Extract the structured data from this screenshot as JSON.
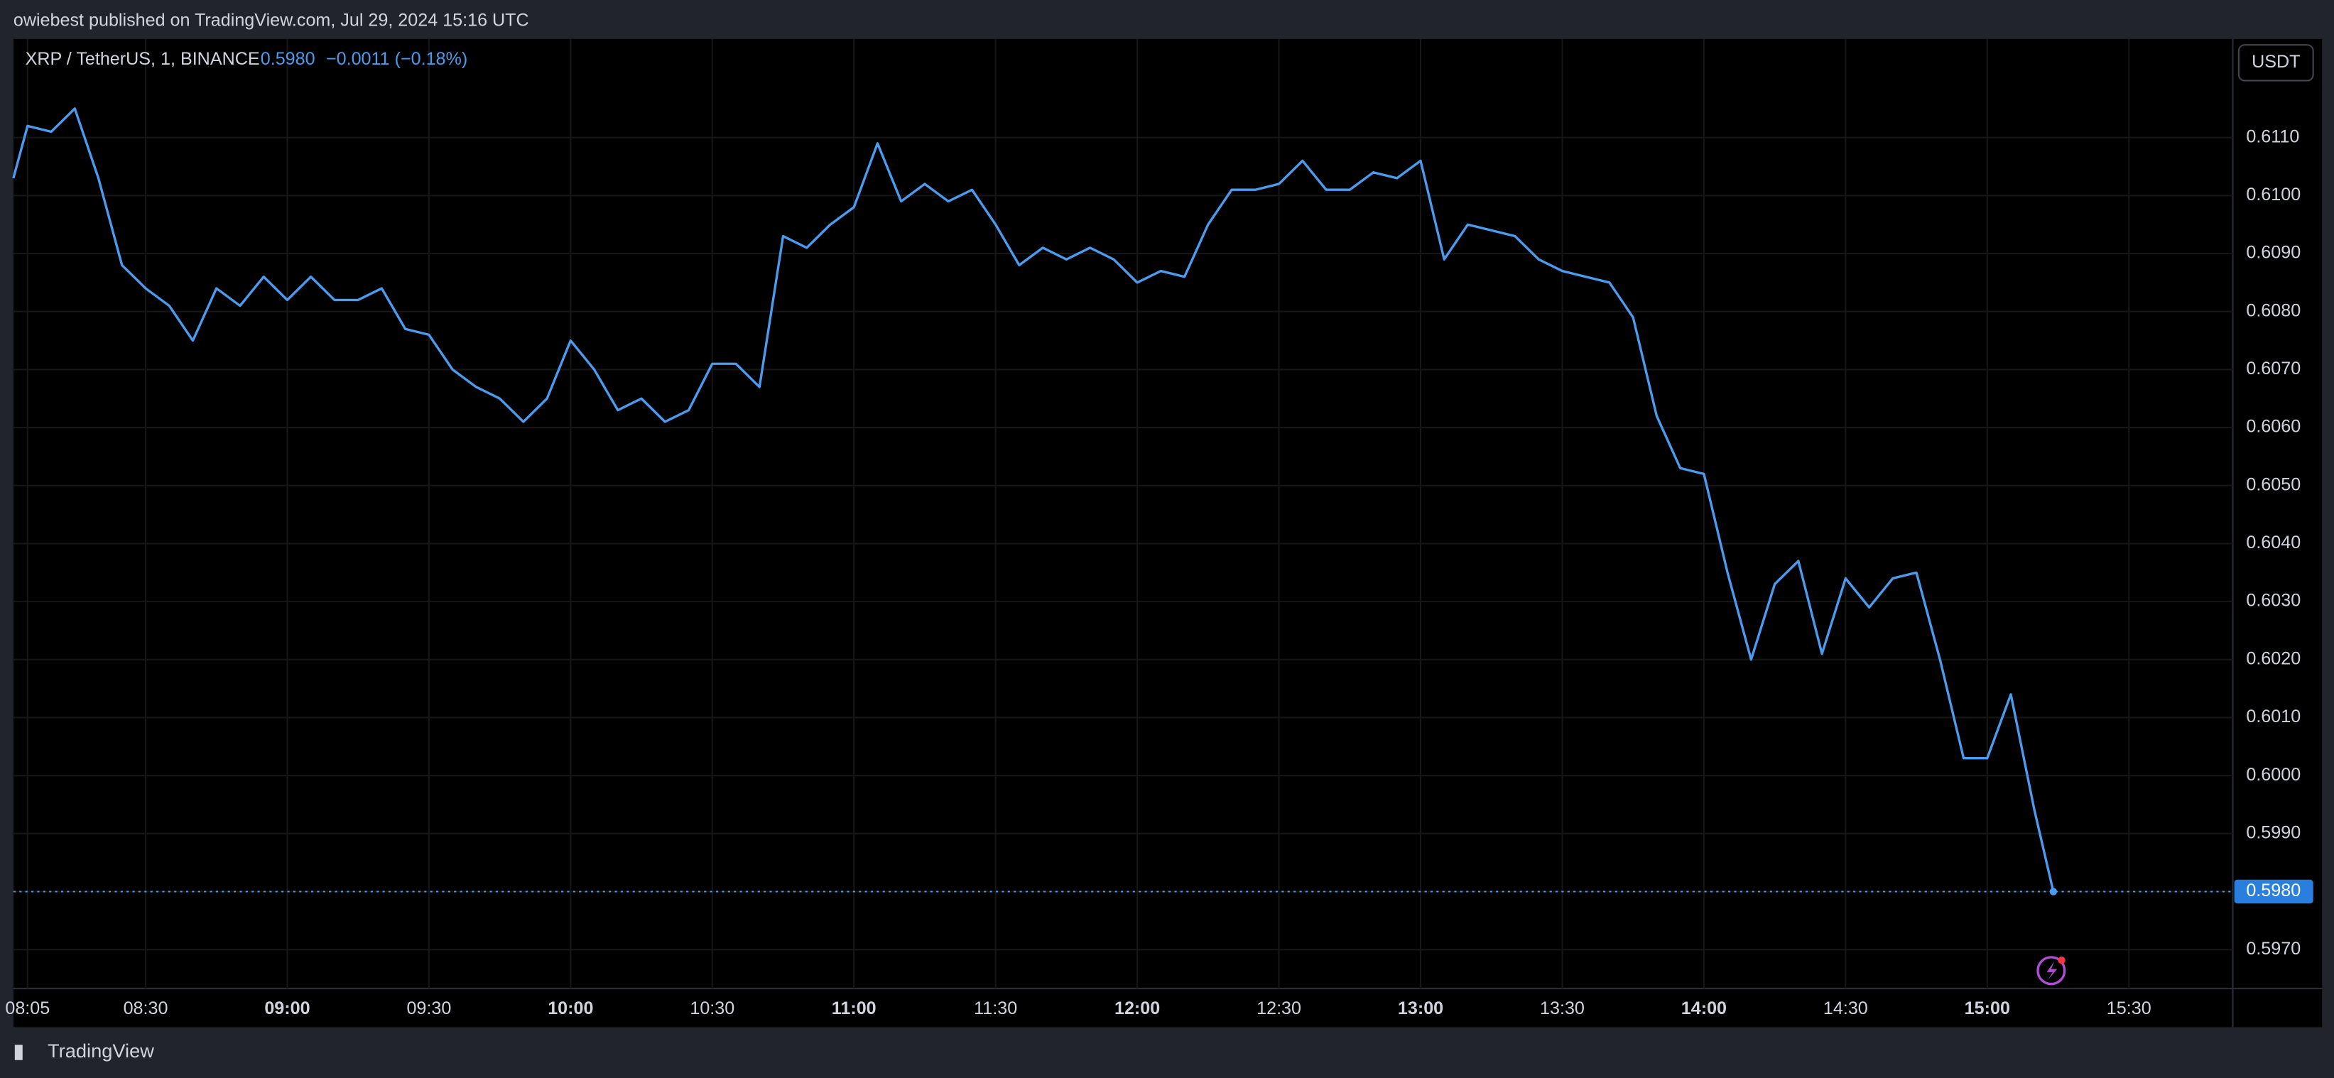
{
  "header": "owiebest published on TradingView.com, Jul 29, 2024 15:16 UTC",
  "footer": "TradingView",
  "currency_button": "USDT",
  "legend": {
    "symbol": "XRP / TetherUS, 1, BINANCE",
    "last": "0.5980",
    "change": "−0.0011 (−0.18%)"
  },
  "chart_data": {
    "type": "line",
    "x": [
      "08:02",
      "08:05",
      "08:10",
      "08:15",
      "08:20",
      "08:25",
      "08:30",
      "08:35",
      "08:40",
      "08:45",
      "08:50",
      "08:55",
      "09:00",
      "09:05",
      "09:10",
      "09:15",
      "09:20",
      "09:25",
      "09:30",
      "09:35",
      "09:40",
      "09:45",
      "09:50",
      "09:55",
      "10:00",
      "10:05",
      "10:10",
      "10:15",
      "10:20",
      "10:25",
      "10:30",
      "10:35",
      "10:40",
      "10:45",
      "10:50",
      "10:55",
      "11:00",
      "11:05",
      "11:10",
      "11:15",
      "11:20",
      "11:25",
      "11:30",
      "11:35",
      "11:40",
      "11:45",
      "11:50",
      "11:55",
      "12:00",
      "12:05",
      "12:10",
      "12:15",
      "12:20",
      "12:25",
      "12:30",
      "12:35",
      "12:40",
      "12:45",
      "12:50",
      "12:55",
      "13:00",
      "13:05",
      "13:10",
      "13:15",
      "13:20",
      "13:25",
      "13:30",
      "13:35",
      "13:40",
      "13:45",
      "13:50",
      "13:55",
      "14:00",
      "14:05",
      "14:10",
      "14:15",
      "14:20",
      "14:25",
      "14:30",
      "14:35",
      "14:40",
      "14:45",
      "14:50",
      "14:55",
      "15:00",
      "15:05",
      "15:10",
      "15:14"
    ],
    "series": [
      {
        "name": "XRP / TetherUS",
        "color": "#4a9cf0",
        "values": [
          0.6103,
          0.6112,
          0.6111,
          0.6115,
          0.6103,
          0.6088,
          0.6084,
          0.6081,
          0.6075,
          0.6084,
          0.6081,
          0.6086,
          0.6082,
          0.6086,
          0.6082,
          0.6082,
          0.6084,
          0.6077,
          0.6076,
          0.607,
          0.6067,
          0.6065,
          0.6061,
          0.6065,
          0.6075,
          0.607,
          0.6063,
          0.6065,
          0.6061,
          0.6063,
          0.6071,
          0.6071,
          0.6067,
          0.6093,
          0.6091,
          0.6095,
          0.6098,
          0.6109,
          0.6099,
          0.6102,
          0.6099,
          0.6101,
          0.6095,
          0.6088,
          0.6091,
          0.6089,
          0.6091,
          0.6089,
          0.6085,
          0.6087,
          0.6086,
          0.6095,
          0.6101,
          0.6101,
          0.6102,
          0.6106,
          0.6101,
          0.6101,
          0.6104,
          0.6103,
          0.6106,
          0.6089,
          0.6095,
          0.6094,
          0.6093,
          0.6089,
          0.6087,
          0.6086,
          0.6085,
          0.6079,
          0.6062,
          0.6053,
          0.6052,
          0.6035,
          0.602,
          0.6033,
          0.6037,
          0.6021,
          0.6034,
          0.6029,
          0.6034,
          0.6035,
          0.602,
          0.6003,
          0.6003,
          0.6014,
          0.5994,
          0.598
        ],
        "value_labels": [
          null,
          null,
          null,
          null,
          null,
          null,
          null,
          null,
          null,
          null,
          null,
          null,
          null,
          null,
          null,
          null,
          null,
          null,
          null,
          null,
          null,
          null,
          null,
          null,
          null,
          null,
          null,
          null,
          null,
          null,
          null,
          null,
          null,
          null,
          null,
          null,
          null,
          null,
          null,
          null,
          null,
          null,
          null,
          null,
          null,
          null,
          null,
          null,
          null,
          null,
          null,
          null,
          null,
          null,
          null,
          null,
          null,
          null,
          null,
          null,
          null,
          null,
          null,
          null,
          null,
          null,
          null,
          null,
          null,
          null,
          null,
          null,
          null,
          null,
          null,
          null,
          null,
          null,
          null,
          null,
          null,
          null,
          null,
          null,
          null,
          null,
          null,
          "0.5980"
        ]
      }
    ],
    "xlim": [
      "08:02",
      "15:52"
    ],
    "xticks": [
      "08:05",
      "08:30",
      "09:00",
      "09:30",
      "10:00",
      "10:30",
      "11:00",
      "11:30",
      "12:00",
      "12:30",
      "13:00",
      "13:30",
      "14:00",
      "14:30",
      "15:00",
      "15:30"
    ],
    "ylim": [
      0.59633,
      0.6127
    ],
    "yticks": [
      {
        "value": 0.597,
        "label": "0.5970"
      },
      {
        "value": 0.598,
        "label": "0.5980"
      },
      {
        "value": 0.599,
        "label": "0.5990"
      },
      {
        "value": 0.6,
        "label": "0.6000"
      },
      {
        "value": 0.601,
        "label": "0.6010"
      },
      {
        "value": 0.602,
        "label": "0.6020"
      },
      {
        "value": 0.603,
        "label": "0.6030"
      },
      {
        "value": 0.604,
        "label": "0.6040"
      },
      {
        "value": 0.605,
        "label": "0.6050"
      },
      {
        "value": 0.606,
        "label": "0.6060"
      },
      {
        "value": 0.607,
        "label": "0.6070"
      },
      {
        "value": 0.608,
        "label": "0.6080"
      },
      {
        "value": 0.609,
        "label": "0.6090"
      },
      {
        "value": 0.61,
        "label": "0.6100"
      },
      {
        "value": 0.611,
        "label": "0.6110"
      }
    ],
    "grid": true
  }
}
